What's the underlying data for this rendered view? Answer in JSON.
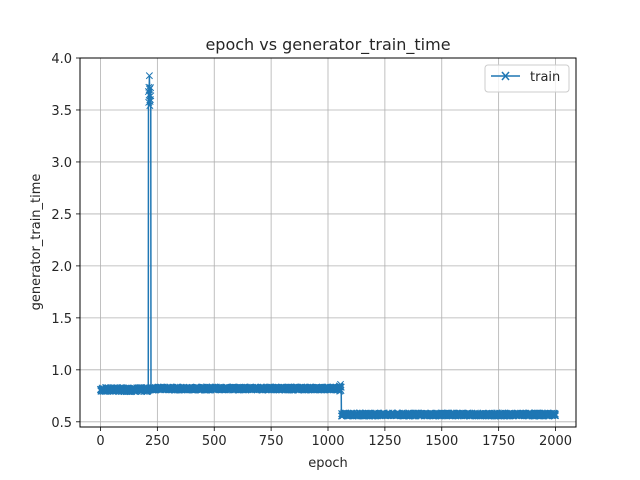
{
  "chart_data": {
    "type": "line",
    "title": "epoch vs generator_train_time",
    "xlabel": "epoch",
    "ylabel": "generator_train_time",
    "xlim": [
      -90,
      2090
    ],
    "ylim": [
      0.45,
      4.0
    ],
    "x_ticks": [
      0,
      250,
      500,
      750,
      1000,
      1250,
      1500,
      1750,
      2000
    ],
    "x_tick_labels": [
      "0",
      "250",
      "500",
      "750",
      "1000",
      "1250",
      "1500",
      "1750",
      "2000"
    ],
    "y_ticks": [
      0.5,
      1.0,
      1.5,
      2.0,
      2.5,
      3.0,
      3.5,
      4.0
    ],
    "y_tick_labels": [
      "0.5",
      "1.0",
      "1.5",
      "2.0",
      "2.5",
      "3.0",
      "3.5",
      "4.0"
    ],
    "grid": true,
    "legend_position": "top-right",
    "marker": "x",
    "series": [
      {
        "name": "train",
        "color": "#1f77b4",
        "segments": [
          {
            "x_start": 0,
            "x_end": 210,
            "base": 0.81,
            "jitter": 0.02
          },
          {
            "x_start": 211,
            "x_end": 221,
            "base": 3.62,
            "jitter": 0.12,
            "peak": {
              "x": 215,
              "y": 3.83
            }
          },
          {
            "x_start": 222,
            "x_end": 1049,
            "base": 0.82,
            "jitter": 0.015
          },
          {
            "x_start": 1050,
            "x_end": 1058,
            "base": 0.82,
            "jitter": 0.03,
            "peak": {
              "x": 1055,
              "y": 0.86
            }
          },
          {
            "x_start": 1059,
            "x_end": 2000,
            "base": 0.57,
            "jitter": 0.015
          }
        ]
      }
    ]
  }
}
